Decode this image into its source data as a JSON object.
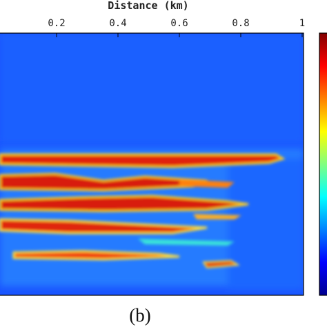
{
  "chart_data": {
    "type": "heatmap",
    "x_label": "Distance (km)",
    "xlim": [
      0,
      1
    ],
    "xticks": [
      0.2,
      0.4,
      0.6,
      0.8,
      1
    ],
    "colormap": "jet",
    "caption": "(b)"
  }
}
